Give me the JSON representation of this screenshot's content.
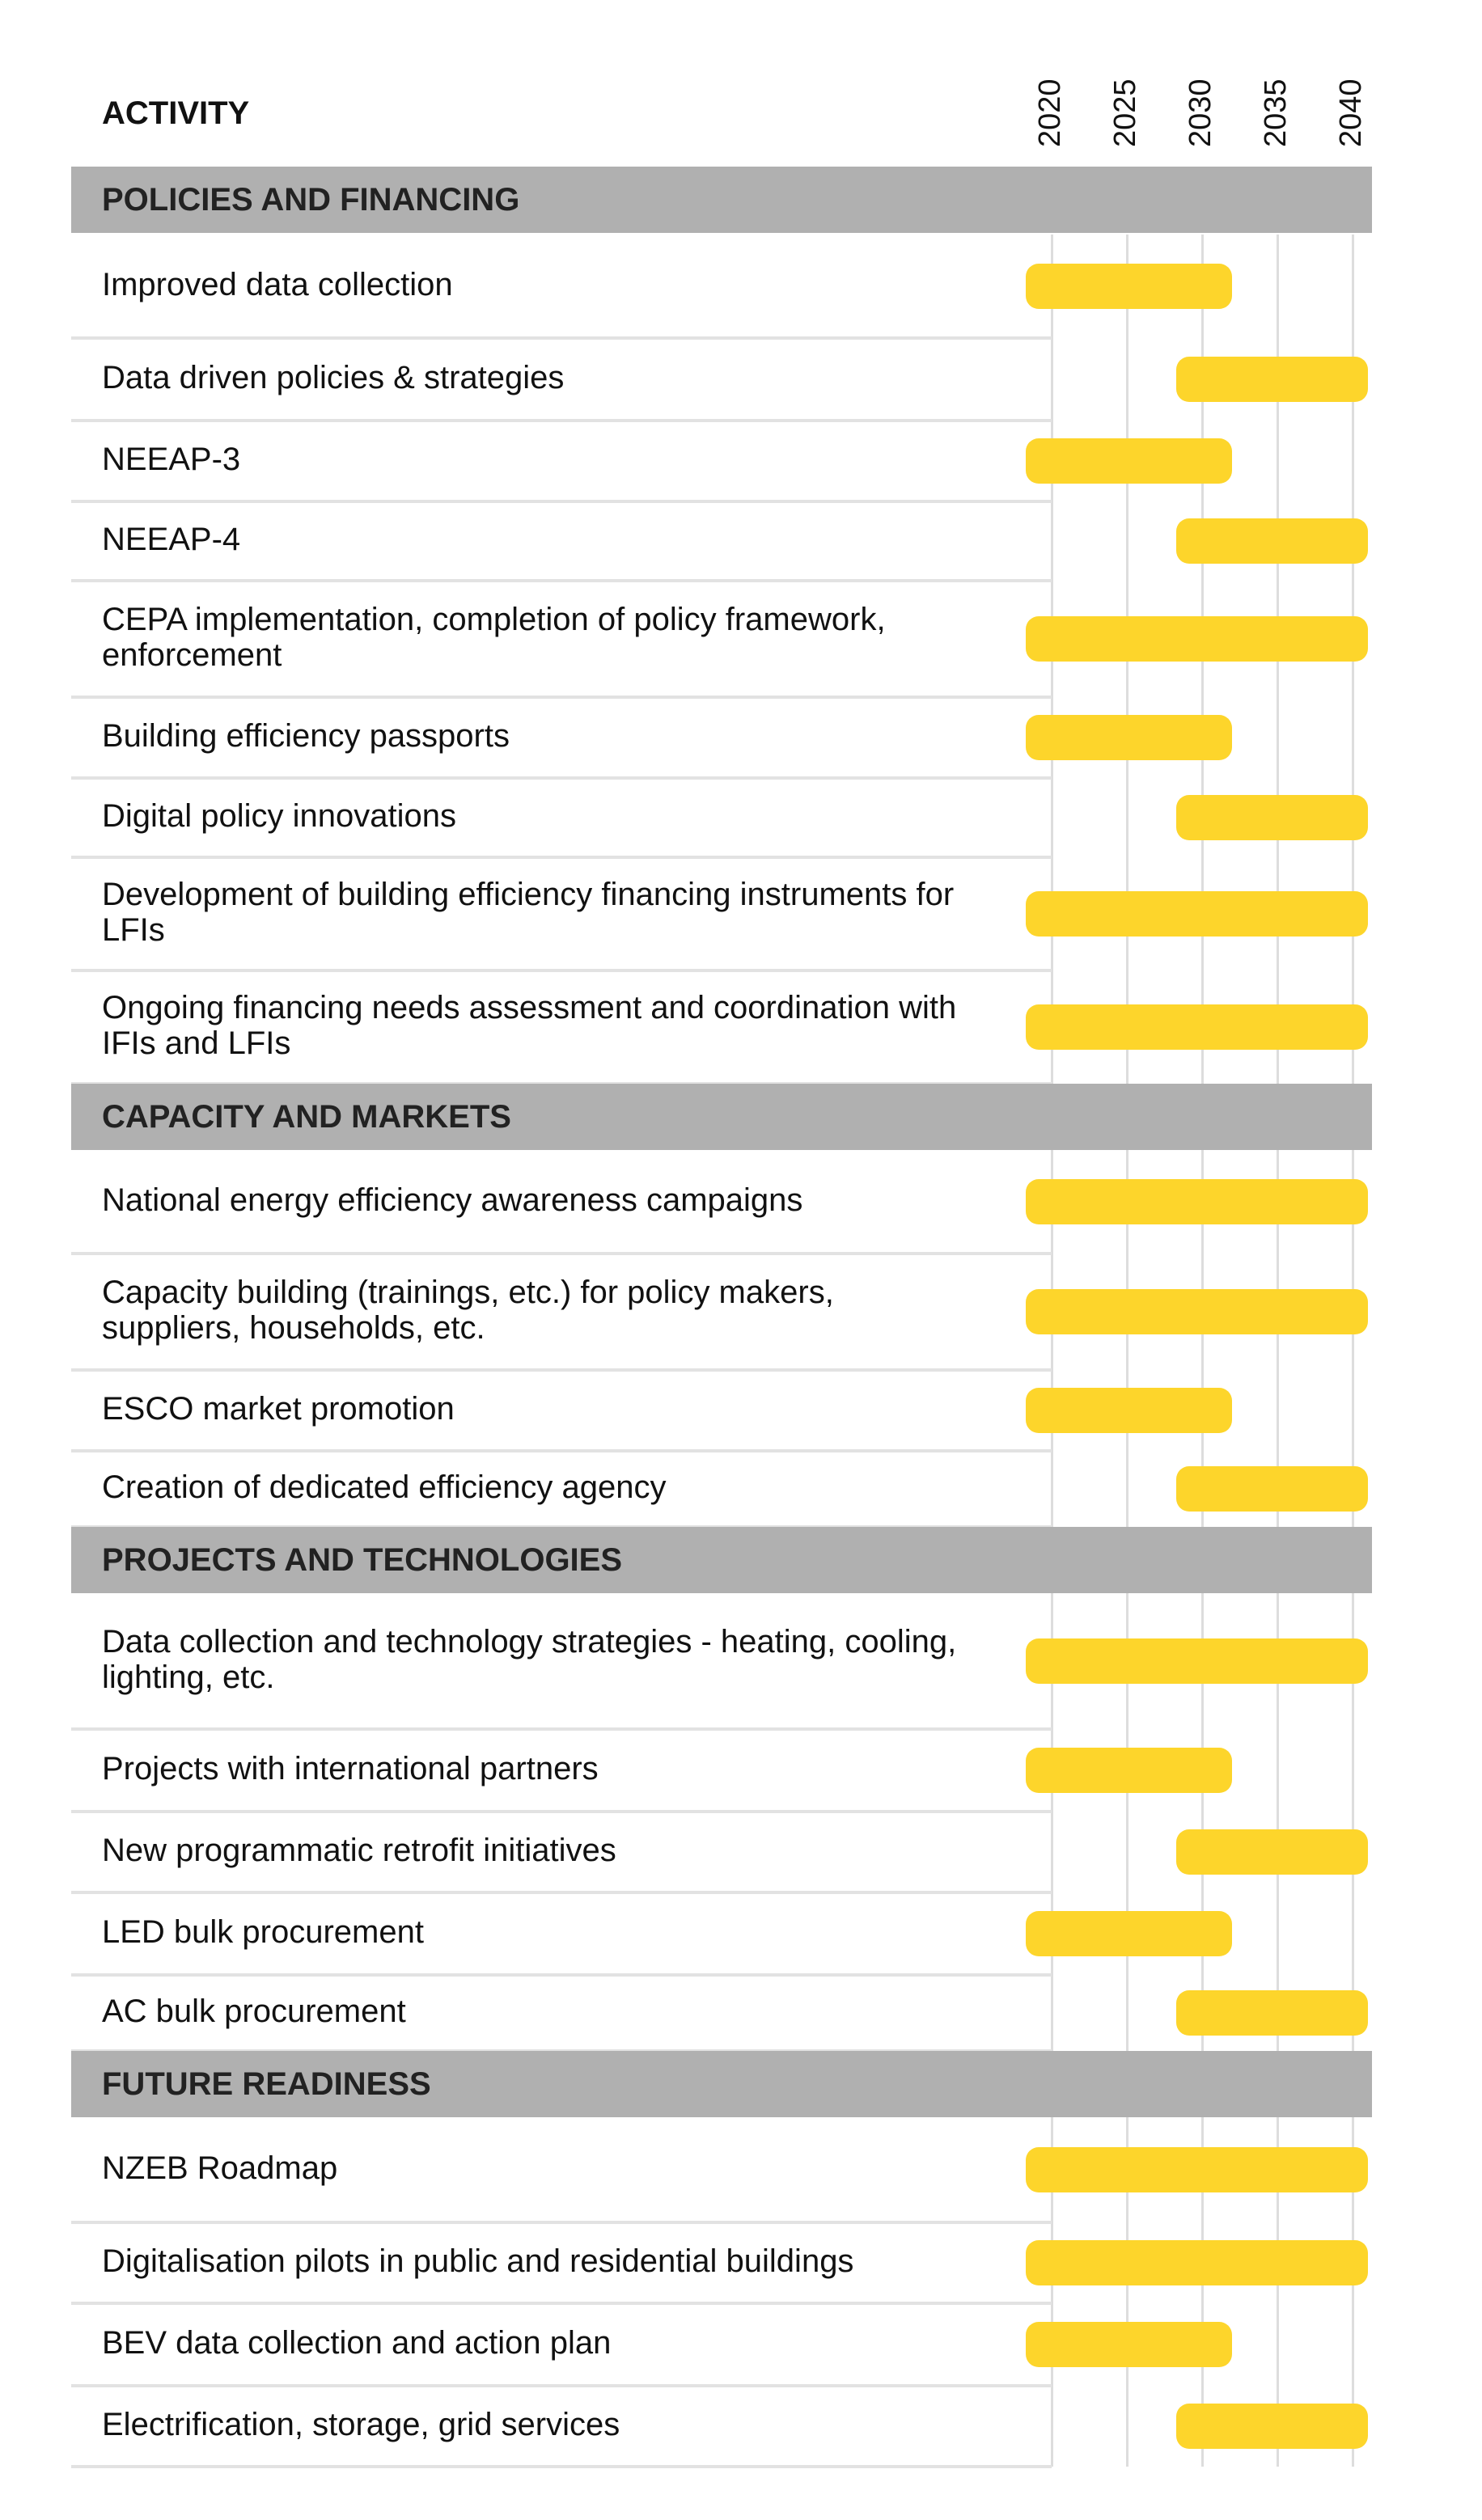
{
  "header": {
    "activity": "ACTIVITY"
  },
  "chart_data": {
    "type": "gantt",
    "years": [
      "2020",
      "2025",
      "2030",
      "2035",
      "2040"
    ],
    "bar_color": "#fdd52b",
    "section_color": "#b0b0b0",
    "sections": [
      {
        "title": "POLICIES AND FINANCING",
        "items": [
          {
            "label": "Improved data collection",
            "start": 2020,
            "end": 2032
          },
          {
            "label": "Data driven policies & strategies",
            "start": 2030,
            "end": 2041
          },
          {
            "label": "NEEAP-3",
            "start": 2020,
            "end": 2032
          },
          {
            "label": "NEEAP-4",
            "start": 2030,
            "end": 2041
          },
          {
            "label": "CEPA implementation, completion of policy framework, enforcement",
            "start": 2020,
            "end": 2041
          },
          {
            "label": "Building efficiency passports",
            "start": 2020,
            "end": 2032
          },
          {
            "label": "Digital policy innovations",
            "start": 2030,
            "end": 2041
          },
          {
            "label": "Development of building efficiency financing instruments for LFIs",
            "start": 2020,
            "end": 2041
          },
          {
            "label": "Ongoing financing needs assessment and coordination with IFIs and LFIs",
            "start": 2020,
            "end": 2041
          }
        ]
      },
      {
        "title": "CAPACITY AND MARKETS",
        "items": [
          {
            "label": "National energy efficiency awareness campaigns",
            "start": 2020,
            "end": 2041
          },
          {
            "label": "Capacity building (trainings, etc.) for policy makers, suppliers, households, etc.",
            "start": 2020,
            "end": 2041
          },
          {
            "label": "ESCO market promotion",
            "start": 2020,
            "end": 2032
          },
          {
            "label": "Creation of dedicated efficiency agency",
            "start": 2030,
            "end": 2041
          }
        ]
      },
      {
        "title": "PROJECTS AND TECHNOLOGIES",
        "items": [
          {
            "label": "Data collection and technology strategies - heating, cooling, lighting, etc.",
            "start": 2020,
            "end": 2041
          },
          {
            "label": "Projects with international partners",
            "start": 2020,
            "end": 2032
          },
          {
            "label": "New programmatic retrofit initiatives",
            "start": 2030,
            "end": 2041
          },
          {
            "label": "LED bulk procurement",
            "start": 2020,
            "end": 2032
          },
          {
            "label": "AC bulk procurement",
            "start": 2030,
            "end": 2041
          }
        ]
      },
      {
        "title": "FUTURE READINESS",
        "items": [
          {
            "label": "NZEB Roadmap",
            "start": 2020,
            "end": 2041
          },
          {
            "label": "Digitalisation pilots in public and residential buildings",
            "start": 2020,
            "end": 2041
          },
          {
            "label": "BEV data collection and action plan",
            "start": 2020,
            "end": 2032
          },
          {
            "label": "Electrification, storage, grid services",
            "start": 2030,
            "end": 2041
          }
        ]
      }
    ]
  }
}
